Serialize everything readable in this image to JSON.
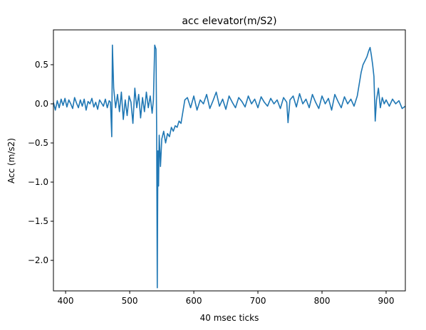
{
  "chart_data": {
    "type": "line",
    "title": "acc elevator(m/S2)",
    "x_label": "40 msec ticks",
    "y_label": "Acc (m/s2)",
    "xlim": [
      381,
      930
    ],
    "ylim": [
      -2.39,
      0.945
    ],
    "xticks": [
      400,
      500,
      600,
      700,
      800,
      900
    ],
    "yticks": [
      {
        "value": -2.0,
        "label": "−2.0"
      },
      {
        "value": -1.5,
        "label": "−1.5"
      },
      {
        "value": -1.0,
        "label": "−1.0"
      },
      {
        "value": -0.5,
        "label": "−0.5"
      },
      {
        "value": 0.0,
        "label": "0.0"
      },
      0.5
    ],
    "grid": false,
    "series": [
      {
        "name": "acc",
        "color": "#1f77b4",
        "x": [
          381,
          384,
          387,
          390,
          393,
          396,
          399,
          402,
          405,
          408,
          411,
          414,
          417,
          420,
          423,
          426,
          429,
          432,
          435,
          438,
          441,
          444,
          447,
          450,
          453,
          456,
          459,
          462,
          465,
          468,
          470,
          472,
          473,
          475,
          478,
          481,
          484,
          487,
          490,
          493,
          496,
          499,
          502,
          505,
          508,
          511,
          514,
          517,
          520,
          523,
          526,
          529,
          532,
          535,
          537,
          539,
          541,
          542,
          543,
          544,
          545,
          546,
          548,
          550,
          553,
          556,
          559,
          562,
          565,
          568,
          571,
          574,
          577,
          580,
          583,
          586,
          590,
          595,
          600,
          605,
          610,
          615,
          620,
          625,
          630,
          635,
          640,
          645,
          650,
          655,
          660,
          665,
          670,
          675,
          680,
          685,
          690,
          695,
          700,
          705,
          710,
          715,
          720,
          725,
          730,
          735,
          740,
          745,
          747,
          750,
          755,
          760,
          765,
          770,
          775,
          780,
          785,
          790,
          795,
          800,
          805,
          810,
          815,
          820,
          825,
          830,
          835,
          840,
          845,
          850,
          855,
          858,
          861,
          864,
          867,
          870,
          873,
          875,
          877,
          879,
          881,
          883,
          885,
          888,
          891,
          894,
          897,
          900,
          905,
          910,
          915,
          920,
          925,
          930
        ],
        "values": [
          0.02,
          -0.08,
          0.04,
          -0.05,
          0.06,
          -0.02,
          0.07,
          -0.04,
          0.05,
          0.0,
          -0.06,
          0.08,
          0.01,
          -0.05,
          0.05,
          -0.03,
          0.06,
          -0.08,
          0.03,
          0.0,
          0.07,
          -0.04,
          0.02,
          -0.07,
          0.05,
          0.01,
          -0.03,
          0.06,
          -0.05,
          0.04,
          0.02,
          -0.42,
          0.75,
          0.2,
          -0.05,
          0.12,
          -0.1,
          0.15,
          -0.2,
          0.05,
          -0.15,
          0.1,
          0.02,
          -0.25,
          0.2,
          -0.05,
          0.12,
          -0.18,
          0.08,
          -0.1,
          0.15,
          -0.05,
          0.1,
          -0.12,
          0.05,
          0.75,
          0.7,
          -0.3,
          -2.35,
          -0.6,
          -1.05,
          -0.4,
          -0.8,
          -0.45,
          -0.35,
          -0.5,
          -0.38,
          -0.42,
          -0.3,
          -0.35,
          -0.28,
          -0.3,
          -0.22,
          -0.25,
          -0.1,
          0.05,
          0.08,
          -0.05,
          0.1,
          -0.08,
          0.05,
          0.0,
          0.12,
          -0.06,
          0.04,
          0.15,
          -0.03,
          0.06,
          -0.07,
          0.1,
          0.02,
          -0.05,
          0.08,
          0.03,
          -0.04,
          0.1,
          0.0,
          0.06,
          -0.05,
          0.09,
          0.02,
          -0.03,
          0.07,
          0.0,
          0.05,
          -0.06,
          0.08,
          0.02,
          -0.24,
          0.05,
          0.1,
          -0.04,
          0.13,
          0.0,
          0.06,
          -0.05,
          0.12,
          0.02,
          -0.06,
          0.1,
          0.0,
          0.07,
          -0.08,
          0.12,
          0.03,
          -0.05,
          0.09,
          0.0,
          0.06,
          -0.03,
          0.1,
          0.25,
          0.4,
          0.5,
          0.55,
          0.6,
          0.68,
          0.72,
          0.62,
          0.5,
          0.35,
          -0.22,
          0.05,
          0.2,
          -0.05,
          0.08,
          0.0,
          0.05,
          -0.03,
          0.06,
          0.0,
          0.04,
          -0.06,
          -0.03
        ]
      }
    ]
  }
}
